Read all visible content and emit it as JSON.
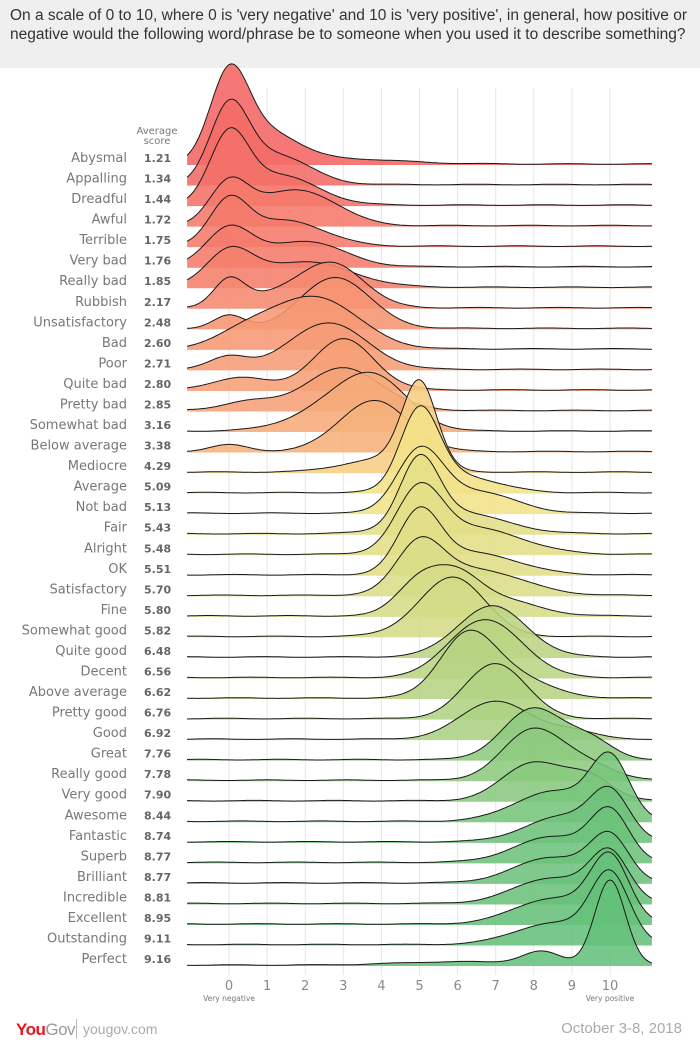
{
  "title": "On a scale of 0 to 10, where 0 is 'very negative' and 10 is 'very positive', in general, how positive or negative would the following word/phrase be to someone when you used it to describe something?",
  "footer": {
    "brand_a": "You",
    "brand_b": "Gov",
    "url": "yougov.com",
    "date": "October 3-8, 2018"
  },
  "chart_data": {
    "type": "ridgeline",
    "score_header_line1": "Average",
    "score_header_line2": "score",
    "x_ticks": [
      "0",
      "1",
      "2",
      "3",
      "4",
      "5",
      "6",
      "7",
      "8",
      "9",
      "10"
    ],
    "x_range": [
      -1.1,
      11.1
    ],
    "x_left_label": "Very negative",
    "x_right_label": "Very positive",
    "grid": true,
    "colors": {
      "negative": "#f46464",
      "neutral": "#f8e48a",
      "positive": "#64c07a"
    },
    "series": [
      {
        "name": "Abysmal",
        "score": "1.21",
        "components": [
          [
            0,
            0.5,
            1.0
          ],
          [
            1,
            0.8,
            0.35
          ],
          [
            3,
            1.5,
            0.06
          ]
        ]
      },
      {
        "name": "Appalling",
        "score": "1.34",
        "components": [
          [
            0,
            0.5,
            0.85
          ],
          [
            1.2,
            0.9,
            0.35
          ]
        ]
      },
      {
        "name": "Dreadful",
        "score": "1.44",
        "components": [
          [
            0,
            0.5,
            0.75
          ],
          [
            1.3,
            1.0,
            0.35
          ]
        ]
      },
      {
        "name": "Awful",
        "score": "1.72",
        "components": [
          [
            0,
            0.5,
            0.45
          ],
          [
            1.5,
            1.0,
            0.35
          ],
          [
            2.5,
            0.8,
            0.12
          ]
        ]
      },
      {
        "name": "Terrible",
        "score": "1.75",
        "components": [
          [
            0,
            0.5,
            0.5
          ],
          [
            1.5,
            1.0,
            0.3
          ]
        ]
      },
      {
        "name": "Very bad",
        "score": "1.76",
        "components": [
          [
            0,
            0.6,
            0.45
          ],
          [
            2,
            1.0,
            0.3
          ]
        ]
      },
      {
        "name": "Really bad",
        "score": "1.85",
        "components": [
          [
            0,
            0.6,
            0.4
          ],
          [
            2,
            1.2,
            0.3
          ]
        ]
      },
      {
        "name": "Rubbish",
        "score": "2.17",
        "components": [
          [
            0,
            0.4,
            0.3
          ],
          [
            2.8,
            0.8,
            0.45
          ],
          [
            1.5,
            1.0,
            0.18
          ]
        ]
      },
      {
        "name": "Unsatisfactory",
        "score": "2.48",
        "components": [
          [
            0,
            0.4,
            0.15
          ],
          [
            2.8,
            0.9,
            0.6
          ]
        ]
      },
      {
        "name": "Bad",
        "score": "2.60",
        "components": [
          [
            0.5,
            0.8,
            0.2
          ],
          [
            2.3,
            1.1,
            0.6
          ]
        ]
      },
      {
        "name": "Poor",
        "score": "2.71",
        "components": [
          [
            0,
            0.5,
            0.15
          ],
          [
            2.6,
            1.0,
            0.55
          ]
        ]
      },
      {
        "name": "Quite bad",
        "score": "2.80",
        "components": [
          [
            0.3,
            0.7,
            0.15
          ],
          [
            3,
            0.8,
            0.6
          ]
        ]
      },
      {
        "name": "Pretty bad",
        "score": "2.85",
        "components": [
          [
            0.5,
            0.7,
            0.1
          ],
          [
            3,
            1.0,
            0.5
          ]
        ]
      },
      {
        "name": "Somewhat bad",
        "score": "3.16",
        "components": [
          [
            3.8,
            0.9,
            0.6
          ],
          [
            2.5,
            1.0,
            0.2
          ]
        ]
      },
      {
        "name": "Below average",
        "score": "3.38",
        "components": [
          [
            0,
            0.5,
            0.08
          ],
          [
            3.8,
            0.9,
            0.6
          ]
        ]
      },
      {
        "name": "Mediocre",
        "score": "4.29",
        "components": [
          [
            5,
            0.45,
            1.0
          ],
          [
            4,
            1.0,
            0.15
          ]
        ]
      },
      {
        "name": "Average",
        "score": "5.09",
        "components": [
          [
            5,
            0.5,
            0.9
          ],
          [
            6,
            1.0,
            0.2
          ]
        ]
      },
      {
        "name": "Not bad",
        "score": "5.13",
        "components": [
          [
            5,
            0.6,
            0.7
          ],
          [
            6.5,
            1.0,
            0.25
          ]
        ]
      },
      {
        "name": "Fair",
        "score": "5.43",
        "components": [
          [
            5,
            0.5,
            0.75
          ],
          [
            6,
            1.2,
            0.25
          ]
        ]
      },
      {
        "name": "Alright",
        "score": "5.48",
        "components": [
          [
            5,
            0.6,
            0.7
          ],
          [
            6.5,
            1.2,
            0.3
          ]
        ]
      },
      {
        "name": "OK",
        "score": "5.51",
        "components": [
          [
            5,
            0.55,
            0.7
          ],
          [
            6.5,
            1.1,
            0.25
          ]
        ]
      },
      {
        "name": "Satisfactory",
        "score": "5.70",
        "components": [
          [
            5,
            0.6,
            0.55
          ],
          [
            6.5,
            1.2,
            0.3
          ]
        ]
      },
      {
        "name": "Fine",
        "score": "5.80",
        "components": [
          [
            5,
            0.6,
            0.4
          ],
          [
            6,
            0.6,
            0.35
          ],
          [
            7,
            1.0,
            0.2
          ]
        ]
      },
      {
        "name": "Somewhat good",
        "score": "5.82",
        "components": [
          [
            6,
            0.8,
            0.6
          ],
          [
            5.2,
            0.8,
            0.15
          ]
        ]
      },
      {
        "name": "Quite good",
        "score": "6.48",
        "components": [
          [
            6.9,
            0.9,
            0.6
          ]
        ]
      },
      {
        "name": "Decent",
        "score": "6.56",
        "components": [
          [
            6.9,
            0.9,
            0.6
          ],
          [
            6,
            0.7,
            0.15
          ]
        ]
      },
      {
        "name": "Above average",
        "score": "6.62",
        "components": [
          [
            6.2,
            0.7,
            0.6
          ],
          [
            7.2,
            1.0,
            0.3
          ]
        ]
      },
      {
        "name": "Pretty good",
        "score": "6.76",
        "components": [
          [
            7,
            0.8,
            0.65
          ]
        ]
      },
      {
        "name": "Good",
        "score": "6.92",
        "components": [
          [
            7,
            0.9,
            0.45
          ],
          [
            9,
            0.6,
            0.1
          ]
        ]
      },
      {
        "name": "Great",
        "score": "7.76",
        "components": [
          [
            8,
            0.8,
            0.6
          ],
          [
            9.5,
            0.6,
            0.2
          ]
        ]
      },
      {
        "name": "Really good",
        "score": "7.78",
        "components": [
          [
            8,
            0.8,
            0.6
          ],
          [
            9.5,
            0.7,
            0.15
          ]
        ]
      },
      {
        "name": "Very good",
        "score": "7.90",
        "components": [
          [
            8,
            0.8,
            0.45
          ],
          [
            9.5,
            0.6,
            0.25
          ]
        ]
      },
      {
        "name": "Awesome",
        "score": "8.44",
        "components": [
          [
            10,
            0.5,
            0.7
          ],
          [
            8.5,
            1.0,
            0.35
          ]
        ]
      },
      {
        "name": "Fantastic",
        "score": "8.74",
        "components": [
          [
            10,
            0.5,
            0.5
          ],
          [
            8.8,
            1.0,
            0.3
          ]
        ]
      },
      {
        "name": "Superb",
        "score": "8.77",
        "components": [
          [
            10,
            0.5,
            0.55
          ],
          [
            8.5,
            1.0,
            0.3
          ]
        ]
      },
      {
        "name": "Brilliant",
        "score": "8.77",
        "components": [
          [
            10,
            0.5,
            0.5
          ],
          [
            8.5,
            1.0,
            0.3
          ]
        ]
      },
      {
        "name": "Incredible",
        "score": "8.81",
        "components": [
          [
            10,
            0.5,
            0.55
          ],
          [
            8.5,
            1.0,
            0.3
          ]
        ]
      },
      {
        "name": "Excellent",
        "score": "8.95",
        "components": [
          [
            10,
            0.5,
            0.75
          ],
          [
            8.5,
            1.0,
            0.3
          ]
        ]
      },
      {
        "name": "Outstanding",
        "score": "9.11",
        "components": [
          [
            10,
            0.5,
            0.8
          ],
          [
            8.5,
            1.0,
            0.25
          ]
        ]
      },
      {
        "name": "Perfect",
        "score": "9.16",
        "components": [
          [
            10,
            0.4,
            1.0
          ],
          [
            8.2,
            0.5,
            0.15
          ],
          [
            6,
            1.5,
            0.04
          ]
        ]
      }
    ]
  }
}
